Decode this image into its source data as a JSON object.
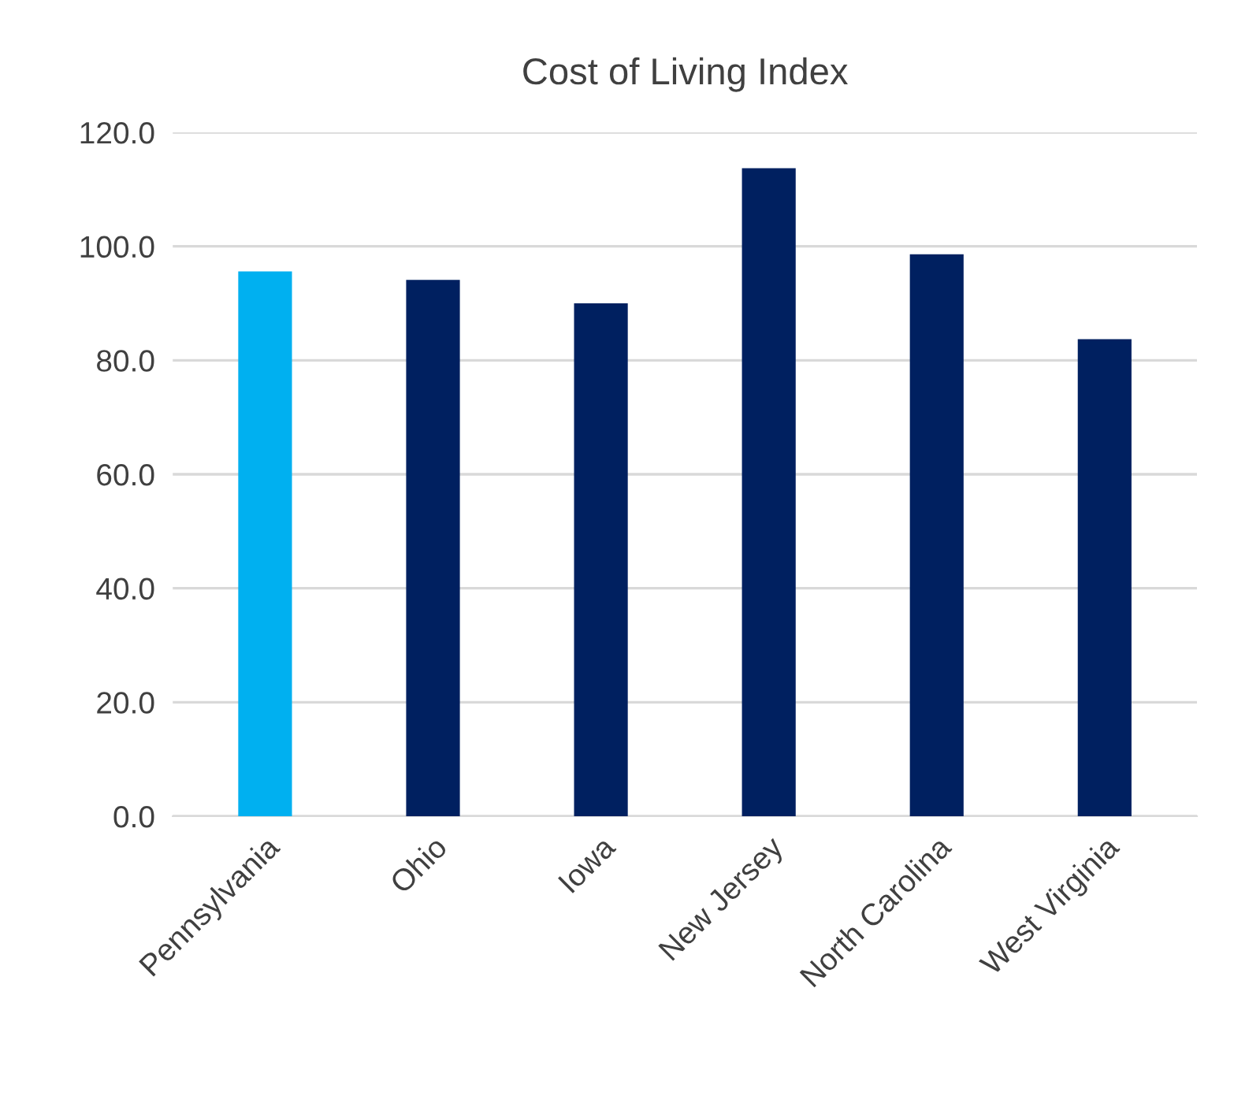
{
  "chart_data": {
    "type": "bar",
    "title": "Cost of Living Index",
    "categories": [
      "Pennsylvania",
      "Ohio",
      "Iowa",
      "New Jersey",
      "North Carolina",
      "West Virginia"
    ],
    "values": [
      95.6,
      94.1,
      90.0,
      113.7,
      98.6,
      83.7
    ],
    "colors": [
      "#00b0f0",
      "#002060",
      "#002060",
      "#002060",
      "#002060",
      "#002060"
    ],
    "ylim": [
      0,
      120
    ],
    "yticks": [
      {
        "value": 0,
        "label": "0.0"
      },
      {
        "value": 20,
        "label": "20.0"
      },
      {
        "value": 40,
        "label": "40.0"
      },
      {
        "value": 60,
        "label": "60.0"
      },
      {
        "value": 80,
        "label": "80.0"
      },
      {
        "value": 100,
        "label": "100.0"
      },
      {
        "value": 120,
        "label": "120.0"
      }
    ],
    "grid": "y"
  }
}
